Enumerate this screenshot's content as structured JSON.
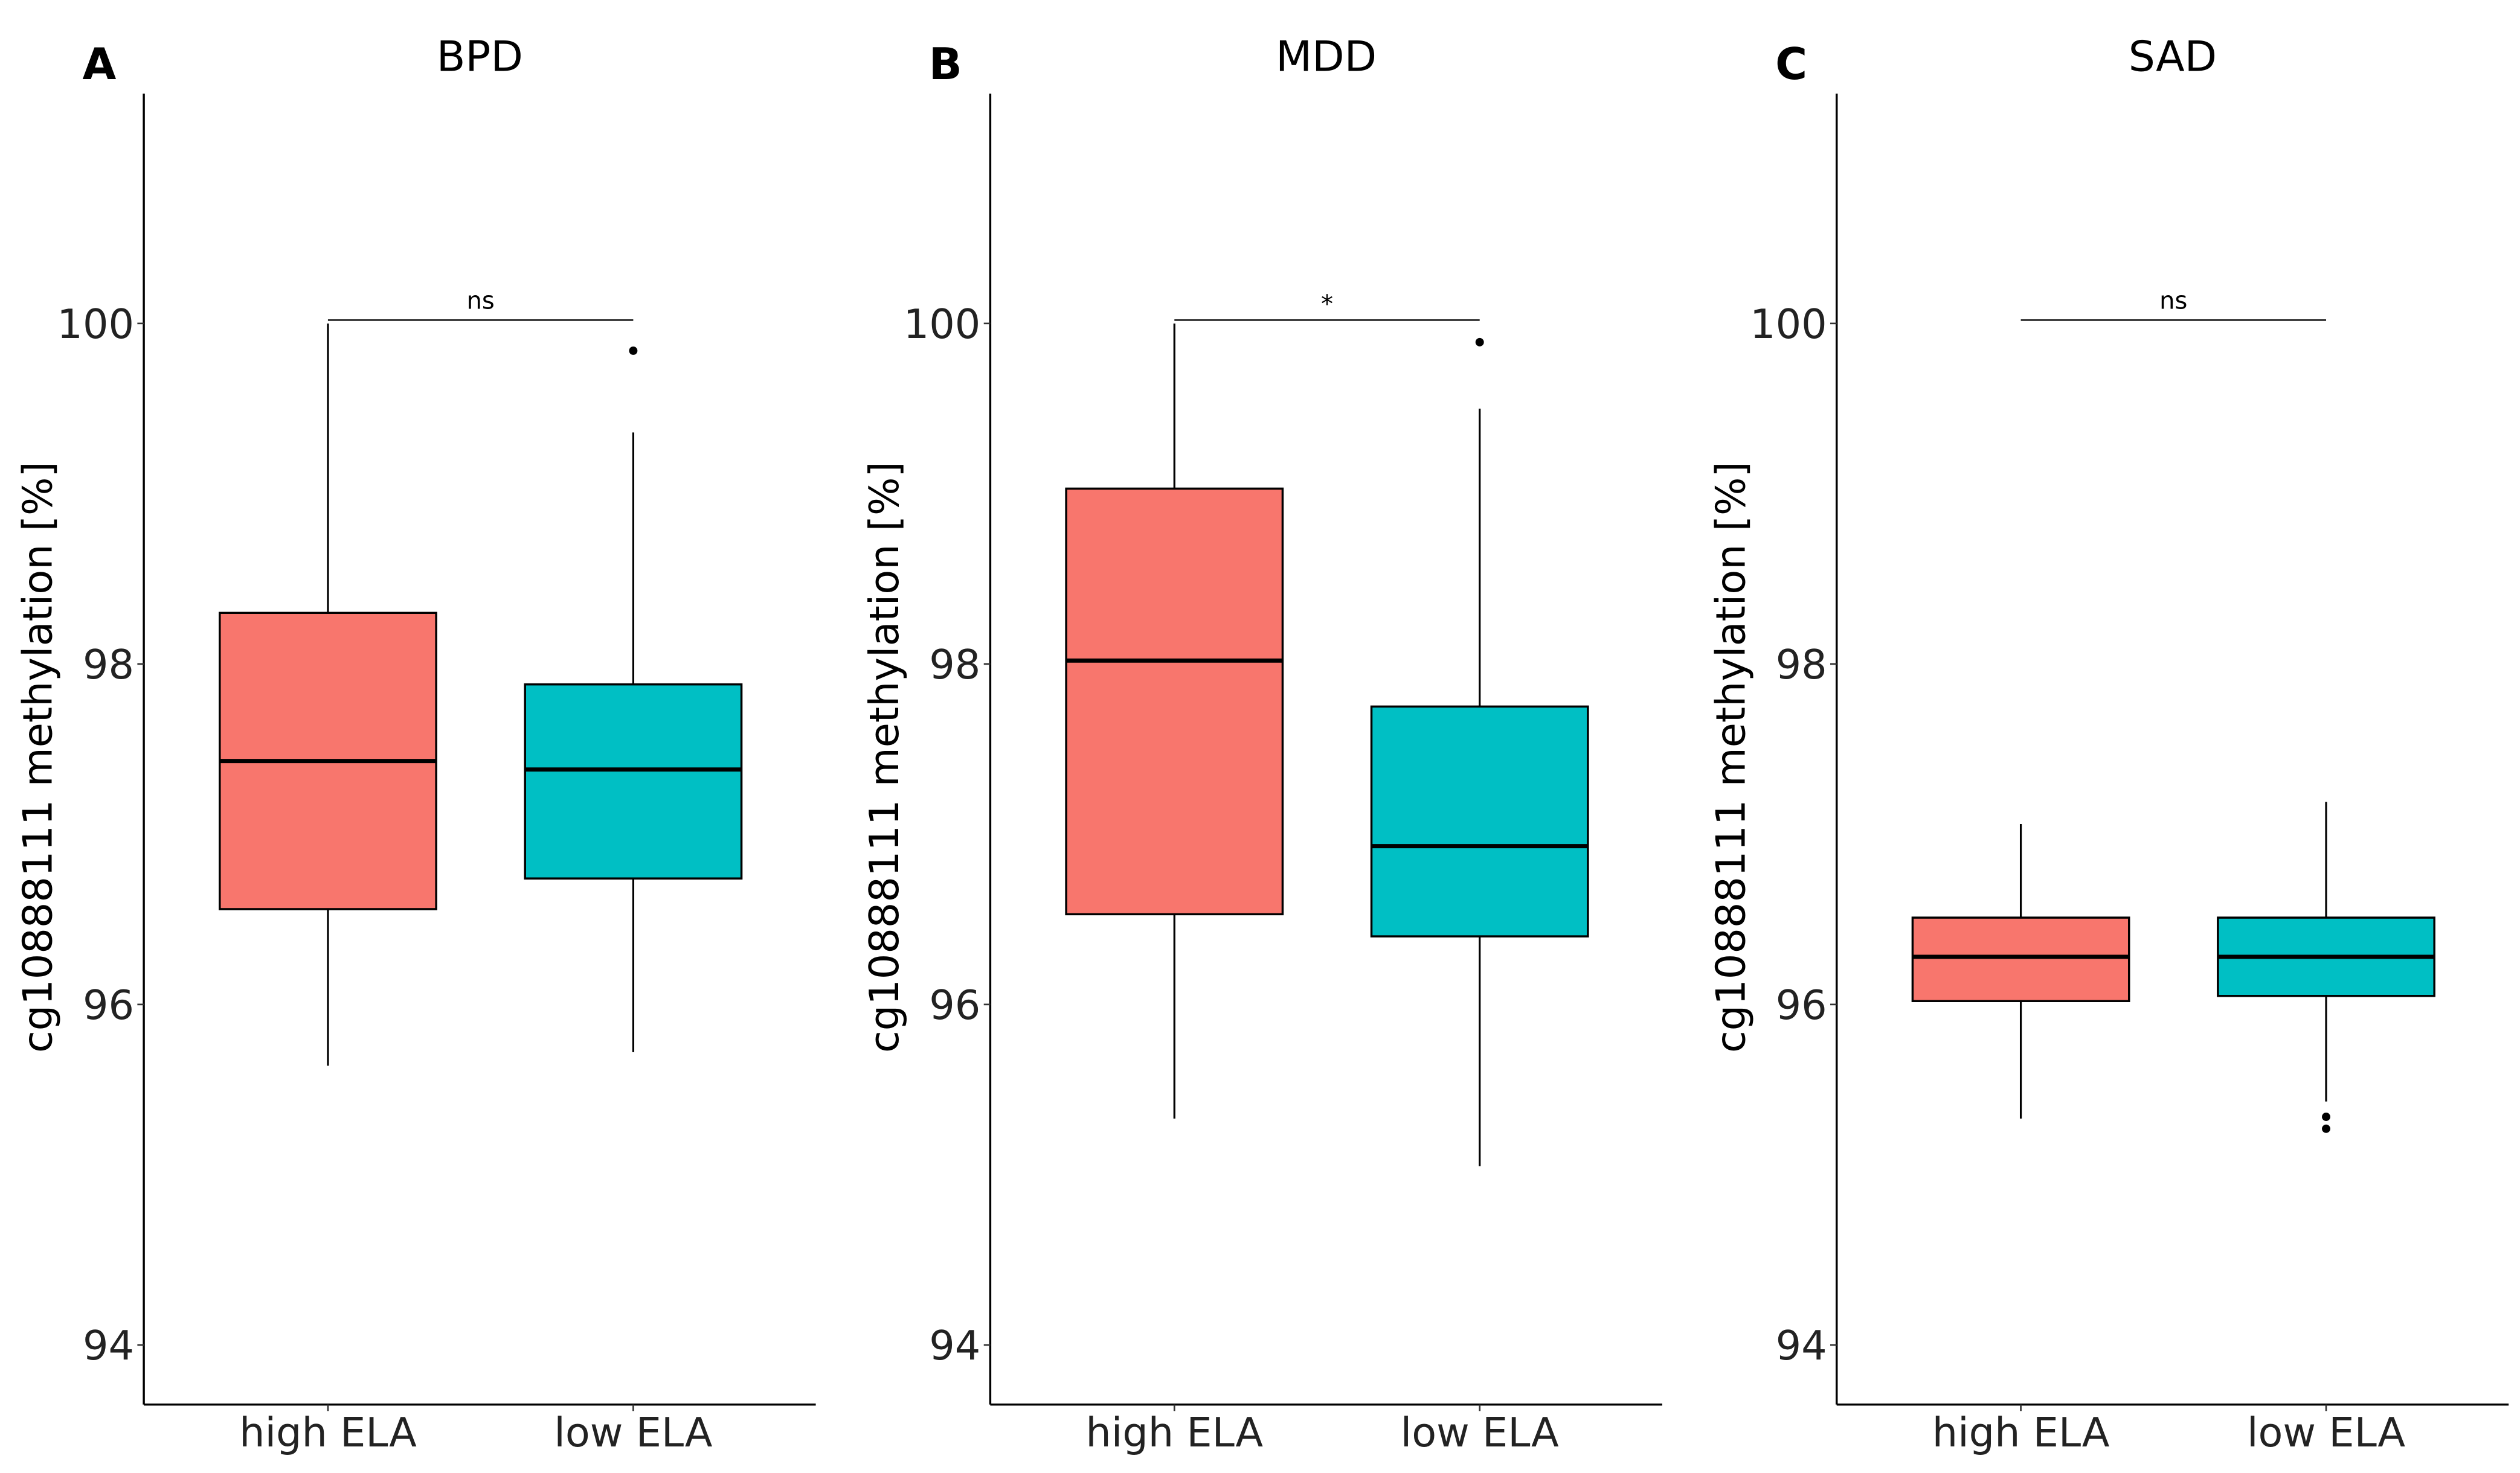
{
  "chart_data": [
    {
      "type": "box",
      "panel_label": "A",
      "title": "BPD",
      "ylabel": "cg10888111 methylation [%]",
      "ylim": [
        93.65,
        101.35
      ],
      "yticks": [
        94,
        96,
        98,
        100
      ],
      "categories": [
        "high ELA",
        "low ELA"
      ],
      "boxes": [
        {
          "group": "high ELA",
          "whisker_low": 95.64,
          "q1": 96.56,
          "median": 97.43,
          "q3": 98.3,
          "whisker_high": 100.0,
          "outliers": []
        },
        {
          "group": "low ELA",
          "whisker_low": 95.72,
          "q1": 96.74,
          "median": 97.38,
          "q3": 97.88,
          "whisker_high": 99.36,
          "outliers": [
            99.84
          ]
        }
      ],
      "comparison": {
        "label": "ns",
        "y": 100.02
      }
    },
    {
      "type": "box",
      "panel_label": "B",
      "title": "MDD",
      "ylabel": "cg10888111 methylation [%]",
      "ylim": [
        93.65,
        101.35
      ],
      "yticks": [
        94,
        96,
        98,
        100
      ],
      "categories": [
        "high ELA",
        "low ELA"
      ],
      "boxes": [
        {
          "group": "high ELA",
          "whisker_low": 95.33,
          "q1": 96.53,
          "median": 98.02,
          "q3": 99.03,
          "whisker_high": 100.0,
          "outliers": []
        },
        {
          "group": "low ELA",
          "whisker_low": 95.05,
          "q1": 96.4,
          "median": 96.93,
          "q3": 97.75,
          "whisker_high": 99.5,
          "outliers": [
            99.89
          ]
        }
      ],
      "comparison": {
        "label": "*",
        "y": 100.02
      }
    },
    {
      "type": "box",
      "panel_label": "C",
      "title": "SAD",
      "ylabel": "cg10888111 methylation [%]",
      "ylim": [
        93.65,
        101.35
      ],
      "yticks": [
        94,
        96,
        98,
        100
      ],
      "categories": [
        "high ELA",
        "low ELA"
      ],
      "boxes": [
        {
          "group": "high ELA",
          "whisker_low": 95.33,
          "q1": 96.02,
          "median": 96.28,
          "q3": 96.51,
          "whisker_high": 97.06,
          "outliers": []
        },
        {
          "group": "low ELA",
          "whisker_low": 95.43,
          "q1": 96.05,
          "median": 96.28,
          "q3": 96.51,
          "whisker_high": 97.19,
          "outliers": [
            95.34,
            95.27
          ]
        }
      ],
      "comparison": {
        "label": "ns",
        "y": 100.02
      }
    }
  ],
  "colors": {
    "high ELA": "#F8766D",
    "low ELA": "#00BFC4"
  }
}
